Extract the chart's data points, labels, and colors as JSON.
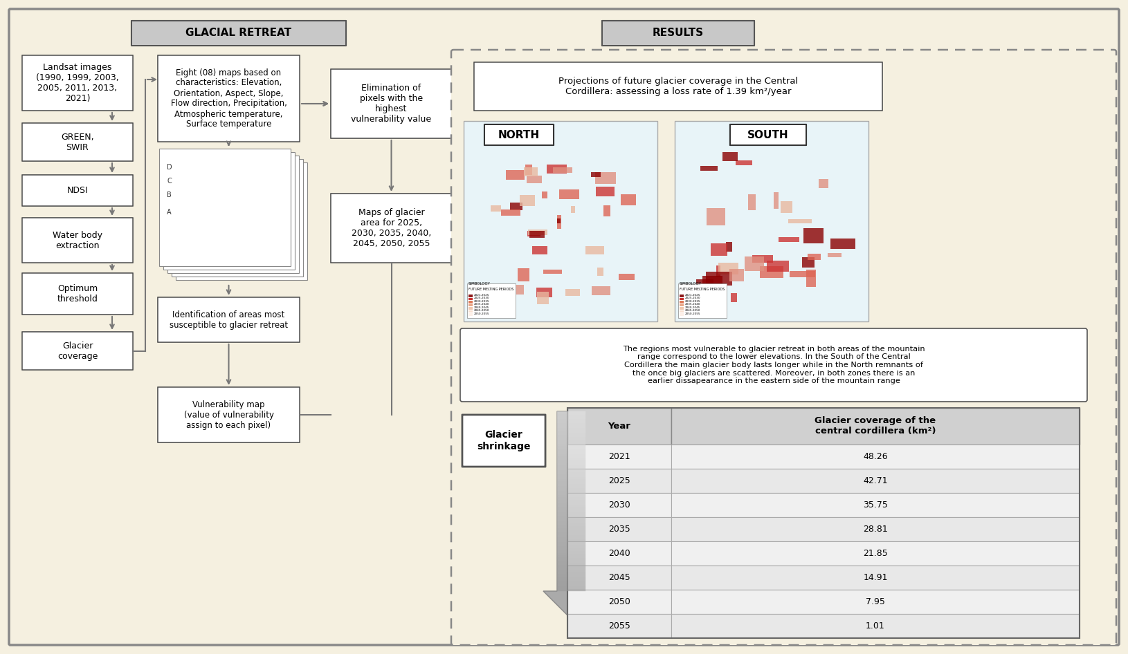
{
  "bg_color": "#f5f0e0",
  "title_glacial": "GLACIAL RETREAT",
  "title_results": "RESULTS",
  "left_boxes": [
    "Landsat images\n(1990, 1999, 2003,\n2005, 2011, 2013,\n2021)",
    "GREEN,\nSWIR",
    "NDSI",
    "Water body\nextraction",
    "Optimum\nthreshold",
    "Glacier\ncoverage"
  ],
  "middle_boxes": [
    "Eight (08) maps based on\ncharacteristics: Elevation,\nOrientation, Aspect, Slope,\nFlow direction, Precipitation,\nAtmospheric temperature,\nSurface temperature",
    "Identification of areas most\nsusceptible to glacier retreat",
    "Vulnerability map\n(value of vulnerability\nassign to each pixel)"
  ],
  "right_col1_boxes": [
    "Elimination of\npixels with the\nhighest\nvulnerability value",
    "Maps of glacier\narea for 2025,\n2030, 2035, 2040,\n2045, 2050, 2055"
  ],
  "projection_text": "Projections of future glacier coverage in the Central\nCordillera: assessing a loss rate of 1.39 km²/year",
  "results_desc": "The regions most vulnerable to glacier retreat in both areas of the mountain\nrange correspond to the lower elevations. In the South of the Central\nCordillera the main glacier body lasts longer while in the North remnants of\nthe once big glaciers are scattered. Moreover, in both zones there is an\nearlier dissapearance in the eastern side of the mountain range",
  "glacier_shrinkage_label": "Glacier\nshrinkage",
  "table_headers": [
    "Year",
    "Glacier coverage of the\ncentral cordillera (km²)"
  ],
  "table_data": [
    [
      "2021",
      "48.26"
    ],
    [
      "2025",
      "42.71"
    ],
    [
      "2030",
      "35.75"
    ],
    [
      "2035",
      "28.81"
    ],
    [
      "2040",
      "21.85"
    ],
    [
      "2045",
      "14.91"
    ],
    [
      "2050",
      "7.95"
    ],
    [
      "2055",
      "1.01"
    ]
  ],
  "box_facecolor": "#ffffff",
  "box_edgecolor": "#555555",
  "arrow_color": "#777777",
  "header_fill": "#d0d0d0",
  "row_fill_alt": "#e8e8e8",
  "row_fill": "#f0f0f0",
  "dashed_border_color": "#888888",
  "title_box_fill": "#c8c8c8"
}
